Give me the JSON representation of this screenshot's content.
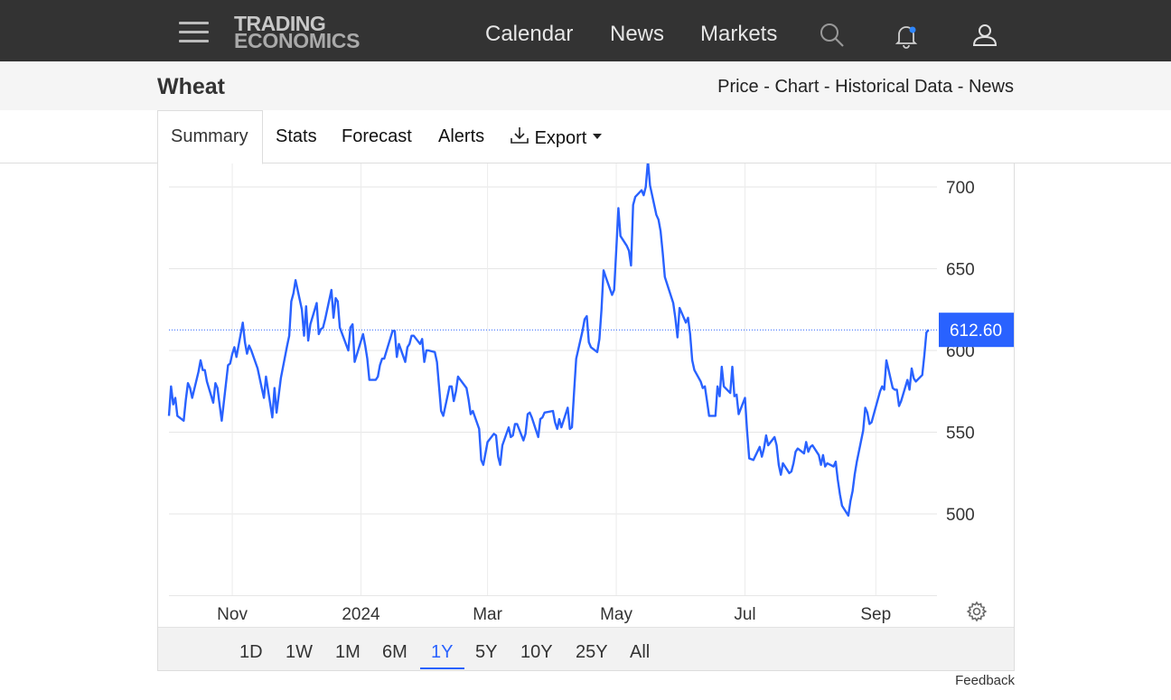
{
  "header": {
    "logo_line1": "TRADING",
    "logo_line2": "ECONOMICS",
    "nav": [
      "Calendar",
      "News",
      "Markets"
    ]
  },
  "subheader": {
    "title": "Wheat",
    "links": [
      "Price",
      "Chart",
      "Historical Data",
      "News"
    ],
    "separator": " - "
  },
  "tabs": {
    "summary": "Summary",
    "stats": "Stats",
    "forecast": "Forecast",
    "alerts": "Alerts",
    "export": "Export"
  },
  "ranges": [
    "1D",
    "1W",
    "1M",
    "6M",
    "1Y",
    "5Y",
    "10Y",
    "25Y",
    "All"
  ],
  "active_range": "1Y",
  "feedback": "Feedback",
  "colors": {
    "line": "#2962ff",
    "topbar": "#333333",
    "accent": "#2962ff"
  },
  "chart_data": {
    "type": "line",
    "title": "",
    "xlabel": "",
    "ylabel": "",
    "x_ticks": [
      "Nov",
      "2024",
      "Mar",
      "May",
      "Jul",
      "Sep"
    ],
    "y_ticks": [
      500,
      550,
      600,
      650,
      700
    ],
    "ylim": [
      450,
      715
    ],
    "xlim": [
      "2023-10-02",
      "2024-09-30"
    ],
    "last_value_label": "612.60",
    "last_value": 612.6,
    "grid": true,
    "series": [
      {
        "name": "",
        "points": [
          [
            "2023-10-02",
            560
          ],
          [
            "2023-10-03",
            578
          ],
          [
            "2023-10-04",
            567
          ],
          [
            "2023-10-05",
            571
          ],
          [
            "2023-10-06",
            560
          ],
          [
            "2023-10-09",
            557
          ],
          [
            "2023-10-10",
            570
          ],
          [
            "2023-10-11",
            580
          ],
          [
            "2023-10-12",
            577
          ],
          [
            "2023-10-13",
            571
          ],
          [
            "2023-10-16",
            587
          ],
          [
            "2023-10-17",
            594
          ],
          [
            "2023-10-18",
            588
          ],
          [
            "2023-10-19",
            588
          ],
          [
            "2023-10-20",
            581
          ],
          [
            "2023-10-23",
            568
          ],
          [
            "2023-10-24",
            580
          ],
          [
            "2023-10-25",
            577
          ],
          [
            "2023-10-26",
            567
          ],
          [
            "2023-10-27",
            557
          ],
          [
            "2023-10-30",
            591
          ],
          [
            "2023-10-31",
            592
          ],
          [
            "2023-11-01",
            598
          ],
          [
            "2023-11-02",
            602
          ],
          [
            "2023-11-03",
            596
          ],
          [
            "2023-11-06",
            617
          ],
          [
            "2023-11-07",
            605
          ],
          [
            "2023-11-08",
            598
          ],
          [
            "2023-11-09",
            603
          ],
          [
            "2023-11-10",
            600
          ],
          [
            "2023-11-13",
            589
          ],
          [
            "2023-11-14",
            583
          ],
          [
            "2023-11-15",
            577
          ],
          [
            "2023-11-16",
            571
          ],
          [
            "2023-11-17",
            584
          ],
          [
            "2023-11-20",
            559
          ],
          [
            "2023-11-21",
            577
          ],
          [
            "2023-11-22",
            562
          ],
          [
            "2023-11-24",
            583
          ],
          [
            "2023-11-27",
            603
          ],
          [
            "2023-11-28",
            609
          ],
          [
            "2023-11-29",
            630
          ],
          [
            "2023-11-30",
            635
          ],
          [
            "2023-12-01",
            643
          ],
          [
            "2023-12-04",
            625
          ],
          [
            "2023-12-05",
            609
          ],
          [
            "2023-12-06",
            627
          ],
          [
            "2023-12-07",
            606
          ],
          [
            "2023-12-08",
            616
          ],
          [
            "2023-12-11",
            629
          ],
          [
            "2023-12-12",
            610
          ],
          [
            "2023-12-13",
            613
          ],
          [
            "2023-12-14",
            614
          ],
          [
            "2023-12-15",
            619
          ],
          [
            "2023-12-18",
            637
          ],
          [
            "2023-12-19",
            620
          ],
          [
            "2023-12-20",
            632
          ],
          [
            "2023-12-21",
            630
          ],
          [
            "2023-12-22",
            614
          ],
          [
            "2023-12-26",
            600
          ],
          [
            "2023-12-27",
            614
          ],
          [
            "2023-12-28",
            616
          ],
          [
            "2023-12-29",
            593
          ],
          [
            "2024-01-02",
            610
          ],
          [
            "2024-01-03",
            603
          ],
          [
            "2024-01-04",
            595
          ],
          [
            "2024-01-05",
            582
          ],
          [
            "2024-01-08",
            582
          ],
          [
            "2024-01-09",
            584
          ],
          [
            "2024-01-10",
            591
          ],
          [
            "2024-01-11",
            595
          ],
          [
            "2024-01-12",
            595
          ],
          [
            "2024-01-16",
            612
          ],
          [
            "2024-01-17",
            612
          ],
          [
            "2024-01-18",
            596
          ],
          [
            "2024-01-19",
            604
          ],
          [
            "2024-01-22",
            593
          ],
          [
            "2024-01-23",
            602
          ],
          [
            "2024-01-24",
            604
          ],
          [
            "2024-01-25",
            609
          ],
          [
            "2024-01-26",
            609
          ],
          [
            "2024-01-29",
            604
          ],
          [
            "2024-01-30",
            607
          ],
          [
            "2024-01-31",
            593
          ],
          [
            "2024-02-01",
            600
          ],
          [
            "2024-02-02",
            600
          ],
          [
            "2024-02-05",
            599
          ],
          [
            "2024-02-06",
            593
          ],
          [
            "2024-02-07",
            578
          ],
          [
            "2024-02-08",
            563
          ],
          [
            "2024-02-09",
            560
          ],
          [
            "2024-02-12",
            578
          ],
          [
            "2024-02-13",
            578
          ],
          [
            "2024-02-14",
            569
          ],
          [
            "2024-02-15",
            575
          ],
          [
            "2024-02-16",
            584
          ],
          [
            "2024-02-20",
            577
          ],
          [
            "2024-02-21",
            570
          ],
          [
            "2024-02-22",
            561
          ],
          [
            "2024-02-23",
            563
          ],
          [
            "2024-02-26",
            552
          ],
          [
            "2024-02-27",
            533
          ],
          [
            "2024-02-28",
            530
          ],
          [
            "2024-03-01",
            544
          ],
          [
            "2024-03-04",
            549
          ],
          [
            "2024-03-05",
            548
          ],
          [
            "2024-03-06",
            535
          ],
          [
            "2024-03-07",
            530
          ],
          [
            "2024-03-08",
            542
          ],
          [
            "2024-03-11",
            553
          ],
          [
            "2024-03-12",
            547
          ],
          [
            "2024-03-13",
            548
          ],
          [
            "2024-03-14",
            555
          ],
          [
            "2024-03-15",
            555
          ],
          [
            "2024-03-18",
            545
          ],
          [
            "2024-03-19",
            549
          ],
          [
            "2024-03-20",
            561
          ],
          [
            "2024-03-21",
            562
          ],
          [
            "2024-03-22",
            559
          ],
          [
            "2024-03-25",
            547
          ],
          [
            "2024-03-26",
            558
          ],
          [
            "2024-03-27",
            559
          ],
          [
            "2024-03-28",
            562
          ],
          [
            "2024-04-01",
            563
          ],
          [
            "2024-04-02",
            556
          ],
          [
            "2024-04-03",
            552
          ],
          [
            "2024-04-04",
            558
          ],
          [
            "2024-04-05",
            553
          ],
          [
            "2024-04-08",
            565
          ],
          [
            "2024-04-09",
            552
          ],
          [
            "2024-04-10",
            553
          ],
          [
            "2024-04-11",
            575
          ],
          [
            "2024-04-12",
            595
          ],
          [
            "2024-04-15",
            612
          ],
          [
            "2024-04-16",
            619
          ],
          [
            "2024-04-17",
            621
          ],
          [
            "2024-04-18",
            605
          ],
          [
            "2024-04-19",
            602
          ],
          [
            "2024-04-22",
            599
          ],
          [
            "2024-04-23",
            607
          ],
          [
            "2024-04-24",
            625
          ],
          [
            "2024-04-25",
            649
          ],
          [
            "2024-04-26",
            645
          ],
          [
            "2024-04-29",
            634
          ],
          [
            "2024-04-30",
            637
          ],
          [
            "2024-05-01",
            662
          ],
          [
            "2024-05-02",
            687
          ],
          [
            "2024-05-03",
            670
          ],
          [
            "2024-05-06",
            664
          ],
          [
            "2024-05-07",
            661
          ],
          [
            "2024-05-08",
            652
          ],
          [
            "2024-05-09",
            689
          ],
          [
            "2024-05-10",
            694
          ],
          [
            "2024-05-13",
            698
          ],
          [
            "2024-05-14",
            695
          ],
          [
            "2024-05-15",
            700
          ],
          [
            "2024-05-16",
            716
          ],
          [
            "2024-05-17",
            701
          ],
          [
            "2024-05-20",
            683
          ],
          [
            "2024-05-21",
            680
          ],
          [
            "2024-05-22",
            673
          ],
          [
            "2024-05-23",
            660
          ],
          [
            "2024-05-24",
            645
          ],
          [
            "2024-05-28",
            629
          ],
          [
            "2024-05-29",
            620
          ],
          [
            "2024-05-30",
            608
          ],
          [
            "2024-05-31",
            626
          ],
          [
            "2024-06-03",
            617
          ],
          [
            "2024-06-04",
            620
          ],
          [
            "2024-06-05",
            610
          ],
          [
            "2024-06-06",
            594
          ],
          [
            "2024-06-07",
            588
          ],
          [
            "2024-06-10",
            581
          ],
          [
            "2024-06-11",
            577
          ],
          [
            "2024-06-12",
            578
          ],
          [
            "2024-06-13",
            569
          ],
          [
            "2024-06-14",
            560
          ],
          [
            "2024-06-17",
            560
          ],
          [
            "2024-06-18",
            578
          ],
          [
            "2024-06-19",
            572
          ],
          [
            "2024-06-20",
            590
          ],
          [
            "2024-06-21",
            578
          ],
          [
            "2024-06-24",
            574
          ],
          [
            "2024-06-25",
            590
          ],
          [
            "2024-06-26",
            572
          ],
          [
            "2024-06-27",
            573
          ],
          [
            "2024-06-28",
            561
          ],
          [
            "2024-07-01",
            571
          ],
          [
            "2024-07-02",
            551
          ],
          [
            "2024-07-03",
            534
          ],
          [
            "2024-07-05",
            533
          ],
          [
            "2024-07-08",
            541
          ],
          [
            "2024-07-09",
            535
          ],
          [
            "2024-07-10",
            540
          ],
          [
            "2024-07-11",
            548
          ],
          [
            "2024-07-12",
            542
          ],
          [
            "2024-07-15",
            547
          ],
          [
            "2024-07-16",
            542
          ],
          [
            "2024-07-17",
            530
          ],
          [
            "2024-07-18",
            524
          ],
          [
            "2024-07-19",
            531
          ],
          [
            "2024-07-22",
            525
          ],
          [
            "2024-07-23",
            526
          ],
          [
            "2024-07-24",
            531
          ],
          [
            "2024-07-25",
            538
          ],
          [
            "2024-07-26",
            540
          ],
          [
            "2024-07-29",
            537
          ],
          [
            "2024-07-30",
            544
          ],
          [
            "2024-07-31",
            538
          ],
          [
            "2024-08-01",
            541
          ],
          [
            "2024-08-02",
            542
          ],
          [
            "2024-08-05",
            536
          ],
          [
            "2024-08-06",
            530
          ],
          [
            "2024-08-07",
            536
          ],
          [
            "2024-08-08",
            529
          ],
          [
            "2024-08-09",
            531
          ],
          [
            "2024-08-12",
            529
          ],
          [
            "2024-08-13",
            532
          ],
          [
            "2024-08-14",
            521
          ],
          [
            "2024-08-15",
            512
          ],
          [
            "2024-08-16",
            505
          ],
          [
            "2024-08-19",
            499
          ],
          [
            "2024-08-20",
            508
          ],
          [
            "2024-08-21",
            514
          ],
          [
            "2024-08-22",
            524
          ],
          [
            "2024-08-23",
            532
          ],
          [
            "2024-08-26",
            551
          ],
          [
            "2024-08-27",
            565
          ],
          [
            "2024-08-28",
            562
          ],
          [
            "2024-08-29",
            555
          ],
          [
            "2024-08-30",
            556
          ],
          [
            "2024-09-03",
            575
          ],
          [
            "2024-09-04",
            578
          ],
          [
            "2024-09-05",
            576
          ],
          [
            "2024-09-06",
            594
          ],
          [
            "2024-09-09",
            577
          ],
          [
            "2024-09-10",
            576
          ],
          [
            "2024-09-11",
            576
          ],
          [
            "2024-09-12",
            566
          ],
          [
            "2024-09-13",
            569
          ],
          [
            "2024-09-16",
            582
          ],
          [
            "2024-09-17",
            576
          ],
          [
            "2024-09-18",
            589
          ],
          [
            "2024-09-19",
            583
          ],
          [
            "2024-09-20",
            581
          ],
          [
            "2024-09-23",
            585
          ],
          [
            "2024-09-24",
            597
          ],
          [
            "2024-09-25",
            611
          ],
          [
            "2024-09-26",
            612.6
          ]
        ]
      }
    ]
  }
}
